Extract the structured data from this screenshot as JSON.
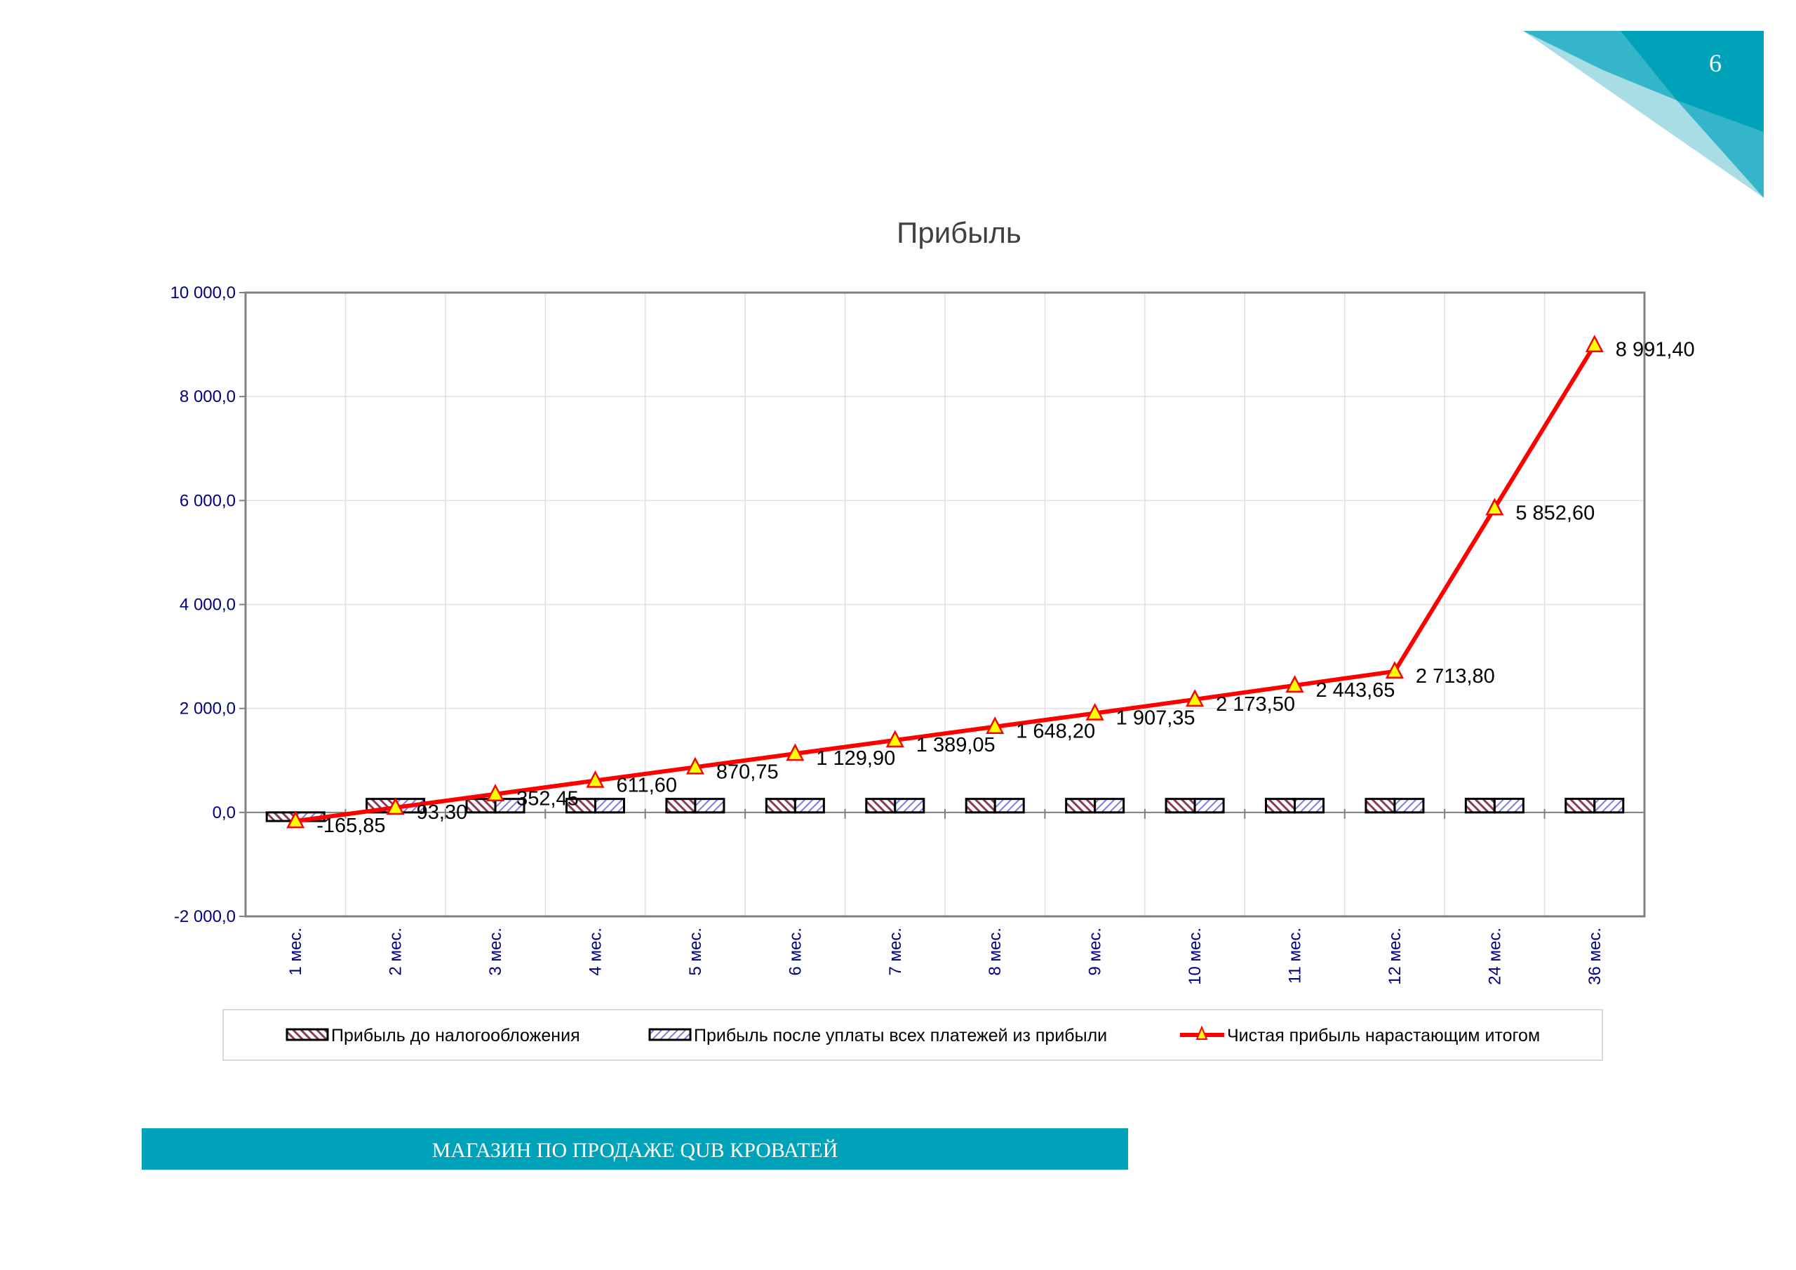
{
  "page_number": "6",
  "footer": {
    "text": "МАГАЗИН ПО ПРОДАЖЕ QUB КРОВАТЕЙ"
  },
  "colors": {
    "accent_dark": "#00a2b9",
    "accent_mid": "#35b5c9",
    "accent_light": "#a8dde6",
    "line": "#ff0000",
    "marker_fill": "#ffff00",
    "axis_text": "#000080"
  },
  "chart_data": {
    "type": "bar",
    "title": "Прибыль",
    "xlabel": "",
    "ylabel": "",
    "ylim": [
      -2000,
      10000
    ],
    "yticks": [
      -2000,
      0,
      2000,
      4000,
      6000,
      8000,
      10000
    ],
    "ytick_labels": [
      "-2 000,0",
      "0,0",
      "2 000,0",
      "4 000,0",
      "6 000,0",
      "8 000,0",
      "10 000,0"
    ],
    "grid": true,
    "legend_position": "bottom",
    "categories": [
      "1 мес.",
      "2 мес.",
      "3 мес.",
      "4 мес.",
      "5 мес.",
      "6 мес.",
      "7 мес.",
      "8 мес.",
      "9 мес.",
      "10 мес.",
      "11 мес.",
      "12 мес.",
      "24 мес.",
      "36 мес."
    ],
    "series": [
      {
        "name": "Прибыль до налогообложения",
        "kind": "bar",
        "pattern": "hatch-maroon",
        "values": [
          -165.85,
          259.15,
          259.15,
          259.15,
          259.15,
          259.15,
          259.15,
          259.15,
          259.15,
          259.15,
          259.15,
          259.15,
          261.57,
          261.57
        ]
      },
      {
        "name": "Прибыль после уплаты всех платежей из прибыли",
        "kind": "bar",
        "pattern": "hatch-blue",
        "values": [
          -165.85,
          259.15,
          259.15,
          259.15,
          259.15,
          259.15,
          259.15,
          259.15,
          259.15,
          259.15,
          259.15,
          259.15,
          261.57,
          261.57
        ]
      },
      {
        "name": "Чистая прибыль нарастающим итогом",
        "kind": "line",
        "values": [
          -165.85,
          93.3,
          352.45,
          611.6,
          870.75,
          1129.9,
          1389.05,
          1648.2,
          1907.35,
          2173.5,
          2443.65,
          2713.8,
          5852.6,
          8991.4
        ],
        "labels": [
          "-165,85",
          "93,30",
          "352,45",
          "611,60",
          "870,75",
          "1 129,90",
          "1 389,05",
          "1 648,20",
          "1 907,35",
          "2 173,50",
          "2 443,65",
          "2 713,80",
          "5 852,60",
          "8 991,40"
        ]
      }
    ]
  }
}
